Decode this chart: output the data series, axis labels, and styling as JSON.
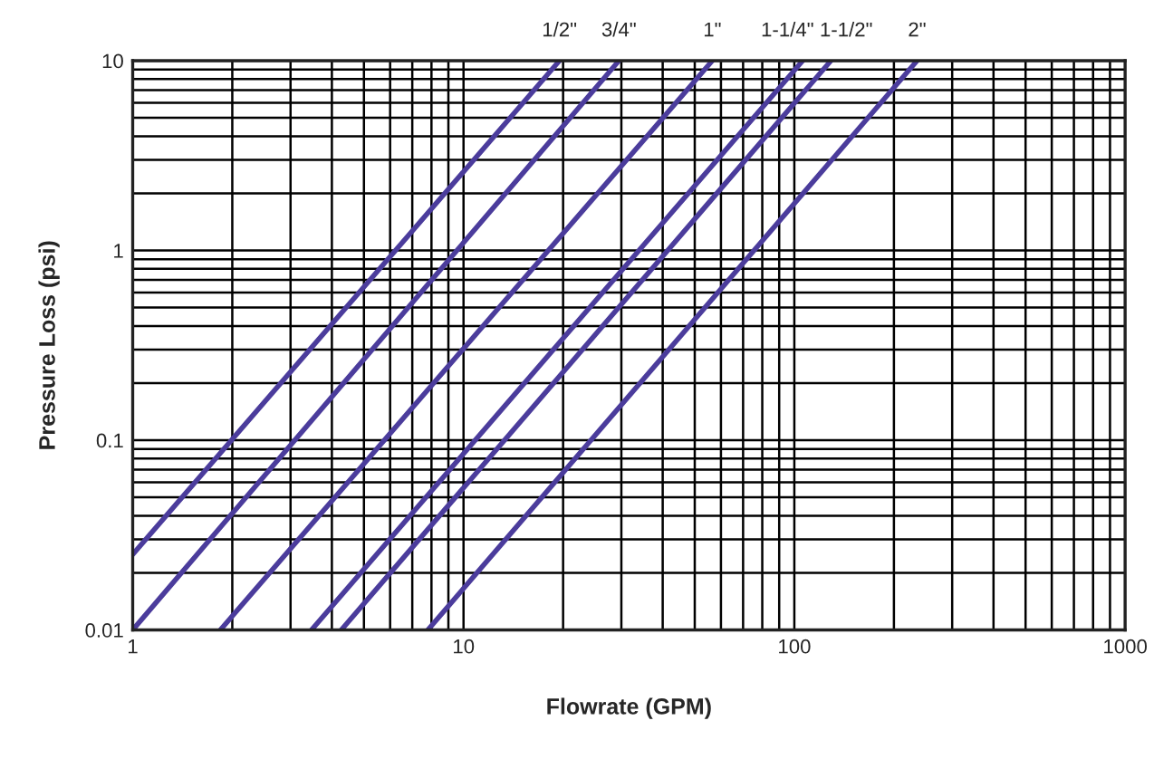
{
  "chart_data": {
    "type": "line",
    "xlabel": "Flowrate (GPM)",
    "ylabel": "Pressure Loss (psi)",
    "log": "xy",
    "grid": true,
    "xlim": [
      1,
      1000
    ],
    "ylim": [
      0.01,
      10
    ],
    "xticks": [
      1,
      10,
      100,
      1000
    ],
    "yticks": [
      0.01,
      0.1,
      1,
      10
    ],
    "legend": false,
    "marker": "none",
    "line_style": "solid",
    "series": [
      {
        "name": "1/2\"",
        "color": "#4b3c9c",
        "x": [
          1,
          19.5
        ],
        "values": [
          0.025,
          10
        ]
      },
      {
        "name": "3/4\"",
        "color": "#4b3c9c",
        "x": [
          1,
          29.5
        ],
        "values": [
          0.01,
          10
        ]
      },
      {
        "name": "1\"",
        "color": "#4b3c9c",
        "x": [
          1.84,
          56.5
        ],
        "values": [
          0.01,
          10
        ]
      },
      {
        "name": "1-1/4\"",
        "color": "#4b3c9c",
        "x": [
          3.47,
          106
        ],
        "values": [
          0.01,
          10
        ]
      },
      {
        "name": "1-1/2\"",
        "color": "#4b3c9c",
        "x": [
          4.27,
          129
        ],
        "values": [
          0.01,
          10
        ]
      },
      {
        "name": "2\"",
        "color": "#4b3c9c",
        "x": [
          7.8,
          235
        ],
        "values": [
          0.01,
          10
        ]
      }
    ]
  }
}
